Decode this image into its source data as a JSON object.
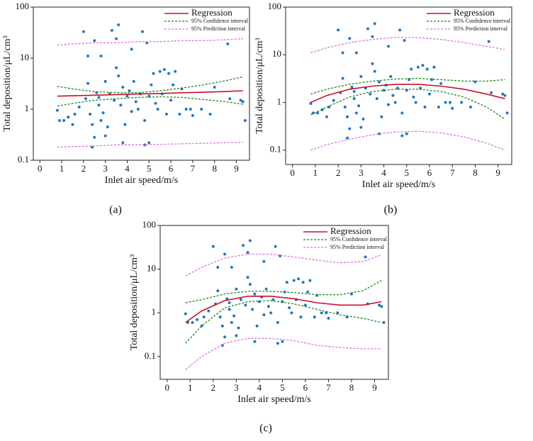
{
  "chart_data": [
    {
      "type": "scatter",
      "label": "(a)",
      "xlabel": "Inlet air speed/m/s",
      "ylabel": "Total deposition/μL/cm³",
      "xlim": [
        -0.3,
        9.6
      ],
      "xticks": [
        0,
        1,
        2,
        3,
        4,
        5,
        6,
        7,
        8,
        9
      ],
      "ylim": [
        0.1,
        100
      ],
      "yticks": [
        0.1,
        1,
        10,
        100
      ],
      "log_y": true,
      "legend": "upper right",
      "points": {
        "color": "#1f77c4",
        "x": [
          0.8,
          0.9,
          1.1,
          1.3,
          1.5,
          1.6,
          1.8,
          2.0,
          2.1,
          2.2,
          2.2,
          2.3,
          2.4,
          2.4,
          2.5,
          2.5,
          2.6,
          2.7,
          2.7,
          2.8,
          2.8,
          2.9,
          3.0,
          3.0,
          3.1,
          3.2,
          3.3,
          3.4,
          3.5,
          3.5,
          3.6,
          3.6,
          3.7,
          3.8,
          3.8,
          3.9,
          4.0,
          4.1,
          4.2,
          4.2,
          4.3,
          4.4,
          4.5,
          4.6,
          4.7,
          4.8,
          4.8,
          4.9,
          5.0,
          5.0,
          5.1,
          5.2,
          5.3,
          5.4,
          5.5,
          5.6,
          5.7,
          5.8,
          5.9,
          6.0,
          6.1,
          6.2,
          6.4,
          6.5,
          6.7,
          6.9,
          7.0,
          7.4,
          7.8,
          8.0,
          8.6,
          8.7,
          9.2,
          9.3,
          9.4
        ],
        "y": [
          0.95,
          0.6,
          0.6,
          0.7,
          0.5,
          0.8,
          1.1,
          33,
          1.6,
          3.2,
          11,
          0.8,
          0.5,
          0.18,
          0.28,
          22,
          2.1,
          1.7,
          1.2,
          11,
          0.6,
          0.85,
          3.5,
          0.3,
          0.45,
          2.0,
          35,
          1.5,
          6.5,
          24,
          45,
          4.5,
          1.2,
          2.7,
          0.22,
          0.5,
          1.8,
          2.3,
          15,
          0.9,
          3.5,
          1.4,
          1.0,
          2.0,
          33,
          0.6,
          0.2,
          20,
          1.8,
          0.22,
          3.0,
          5.0,
          1.3,
          1.0,
          5.5,
          2.0,
          6.0,
          0.8,
          5.0,
          1.5,
          3.0,
          5.5,
          0.8,
          2.5,
          1.0,
          1.0,
          0.75,
          1.0,
          0.8,
          2.7,
          19,
          1.6,
          1.5,
          1.4,
          0.6
        ]
      },
      "line_x": [
        0.8,
        1.5,
        2.5,
        3.5,
        4.5,
        5.5,
        6.5,
        7.5,
        8.5,
        9.3
      ],
      "series": [
        {
          "name": "Regression",
          "color": "#c8102e",
          "dashed": false,
          "values": [
            1.8,
            1.83,
            1.88,
            1.93,
            1.98,
            2.03,
            2.1,
            2.15,
            2.22,
            2.3
          ]
        },
        {
          "name": "95% Confidence interval",
          "color": "#1a8a1a",
          "dashed": true,
          "upper": [
            2.8,
            2.5,
            2.2,
            2.1,
            2.1,
            2.3,
            2.6,
            3.0,
            3.6,
            4.3
          ],
          "lower": [
            1.15,
            1.3,
            1.5,
            1.6,
            1.7,
            1.75,
            1.7,
            1.55,
            1.4,
            1.25
          ]
        },
        {
          "name": "95% Prediction interval",
          "color": "#e070e0",
          "dashed": true,
          "upper": [
            18,
            19,
            20,
            20,
            21,
            21,
            22,
            22,
            23,
            24
          ],
          "lower": [
            0.18,
            0.185,
            0.19,
            0.2,
            0.2,
            0.205,
            0.21,
            0.215,
            0.22,
            0.225
          ]
        }
      ]
    },
    {
      "type": "scatter",
      "label": "(b)",
      "xlabel": "Inlet air speed/m/s",
      "ylabel": "Total deposition/μL/cm³",
      "xlim": [
        -0.3,
        9.6
      ],
      "xticks": [
        0,
        1,
        2,
        3,
        4,
        5,
        6,
        7,
        8,
        9
      ],
      "ylim": [
        0.05,
        100
      ],
      "yticks": [
        0.1,
        1,
        10,
        100
      ],
      "log_y": true,
      "legend": "upper right",
      "points": {
        "color": "#1f77c4",
        "x": [
          0.8,
          0.9,
          1.1,
          1.3,
          1.5,
          1.6,
          1.8,
          2.0,
          2.1,
          2.2,
          2.2,
          2.3,
          2.4,
          2.4,
          2.5,
          2.5,
          2.6,
          2.7,
          2.7,
          2.8,
          2.8,
          2.9,
          3.0,
          3.0,
          3.1,
          3.2,
          3.3,
          3.4,
          3.5,
          3.5,
          3.6,
          3.6,
          3.7,
          3.8,
          3.8,
          3.9,
          4.0,
          4.1,
          4.2,
          4.2,
          4.3,
          4.4,
          4.5,
          4.6,
          4.7,
          4.8,
          4.8,
          4.9,
          5.0,
          5.0,
          5.1,
          5.2,
          5.3,
          5.4,
          5.5,
          5.6,
          5.7,
          5.8,
          5.9,
          6.0,
          6.1,
          6.2,
          6.4,
          6.5,
          6.7,
          6.9,
          7.0,
          7.4,
          7.8,
          8.0,
          8.6,
          8.7,
          9.2,
          9.3,
          9.4
        ],
        "y": [
          0.95,
          0.6,
          0.6,
          0.7,
          0.5,
          0.8,
          1.1,
          33,
          1.6,
          3.2,
          11,
          0.8,
          0.5,
          0.18,
          0.28,
          22,
          2.1,
          1.7,
          1.2,
          11,
          0.6,
          0.85,
          3.5,
          0.3,
          0.45,
          2.0,
          35,
          1.5,
          6.5,
          24,
          45,
          4.5,
          1.2,
          2.7,
          0.22,
          0.5,
          1.8,
          2.3,
          15,
          0.9,
          3.5,
          1.4,
          1.0,
          2.0,
          33,
          0.6,
          0.2,
          20,
          1.8,
          0.22,
          3.0,
          5.0,
          1.3,
          1.0,
          5.5,
          2.0,
          6.0,
          0.8,
          5.0,
          1.5,
          3.0,
          5.5,
          0.8,
          2.5,
          1.0,
          1.0,
          0.75,
          1.0,
          0.8,
          2.7,
          19,
          1.6,
          1.5,
          1.4,
          0.6
        ]
      },
      "line_x": [
        0.8,
        1.5,
        2.5,
        3.5,
        4.5,
        5.5,
        6.5,
        7.5,
        8.5,
        9.3
      ],
      "series": [
        {
          "name": "Regression",
          "color": "#c8102e",
          "dashed": false,
          "values": [
            1.0,
            1.4,
            1.9,
            2.2,
            2.4,
            2.4,
            2.2,
            1.9,
            1.5,
            1.2
          ]
        },
        {
          "name": "95% Confidence interval",
          "color": "#1a8a1a",
          "dashed": true,
          "upper": [
            1.5,
            1.9,
            2.4,
            2.8,
            3.1,
            3.2,
            3.0,
            2.8,
            2.8,
            3.0
          ],
          "lower": [
            0.55,
            0.8,
            1.3,
            1.7,
            1.9,
            1.9,
            1.7,
            1.3,
            0.8,
            0.45
          ]
        },
        {
          "name": "95% Prediction interval",
          "color": "#e070e0",
          "dashed": true,
          "upper": [
            11,
            14,
            18,
            21,
            23,
            23,
            21,
            18,
            15,
            13
          ],
          "lower": [
            0.1,
            0.13,
            0.17,
            0.21,
            0.24,
            0.25,
            0.23,
            0.19,
            0.14,
            0.1
          ]
        }
      ]
    },
    {
      "type": "scatter",
      "label": "(c)",
      "xlabel": "Inlet air speed/m/s",
      "ylabel": "Total deposition/μL/cm³",
      "xlim": [
        -0.3,
        9.6
      ],
      "xticks": [
        0,
        1,
        2,
        3,
        4,
        5,
        6,
        7,
        8,
        9
      ],
      "ylim": [
        0.03,
        100
      ],
      "yticks": [
        0.1,
        1,
        10,
        100
      ],
      "log_y": true,
      "legend": "upper right",
      "points": {
        "color": "#1f77c4",
        "x": [
          0.8,
          0.9,
          1.1,
          1.3,
          1.5,
          1.6,
          1.8,
          2.0,
          2.1,
          2.2,
          2.2,
          2.3,
          2.4,
          2.4,
          2.5,
          2.5,
          2.6,
          2.7,
          2.7,
          2.8,
          2.8,
          2.9,
          3.0,
          3.0,
          3.1,
          3.2,
          3.3,
          3.4,
          3.5,
          3.5,
          3.6,
          3.6,
          3.7,
          3.8,
          3.8,
          3.9,
          4.0,
          4.1,
          4.2,
          4.2,
          4.3,
          4.4,
          4.5,
          4.6,
          4.7,
          4.8,
          4.8,
          4.9,
          5.0,
          5.0,
          5.1,
          5.2,
          5.3,
          5.4,
          5.5,
          5.6,
          5.7,
          5.8,
          5.9,
          6.0,
          6.1,
          6.2,
          6.4,
          6.5,
          6.7,
          6.9,
          7.0,
          7.4,
          7.8,
          8.0,
          8.6,
          8.7,
          9.2,
          9.3,
          9.4
        ],
        "y": [
          0.95,
          0.6,
          0.6,
          0.7,
          0.5,
          0.8,
          1.1,
          33,
          1.6,
          3.2,
          11,
          0.8,
          0.5,
          0.18,
          0.28,
          22,
          2.1,
          1.7,
          1.2,
          11,
          0.6,
          0.85,
          3.5,
          0.3,
          0.45,
          2.0,
          35,
          1.5,
          6.5,
          24,
          45,
          4.5,
          1.2,
          2.7,
          0.22,
          0.5,
          1.8,
          2.3,
          15,
          0.9,
          3.5,
          1.4,
          1.0,
          2.0,
          33,
          0.6,
          0.2,
          20,
          1.8,
          0.22,
          3.0,
          5.0,
          1.3,
          1.0,
          5.5,
          2.0,
          6.0,
          0.8,
          5.0,
          1.5,
          3.0,
          5.5,
          0.8,
          2.5,
          1.0,
          1.0,
          0.75,
          1.0,
          0.8,
          2.7,
          19,
          1.6,
          1.5,
          1.4,
          0.6
        ]
      },
      "line_x": [
        0.8,
        1.5,
        2.5,
        3.5,
        4.5,
        5.5,
        6.5,
        7.5,
        8.5,
        9.3
      ],
      "series": [
        {
          "name": "Regression",
          "color": "#c8102e",
          "dashed": false,
          "values": [
            0.6,
            1.1,
            1.9,
            2.4,
            2.4,
            2.1,
            1.7,
            1.5,
            1.5,
            1.8
          ]
        },
        {
          "name": "95% Confidence interval",
          "color": "#1a8a1a",
          "dashed": true,
          "upper": [
            1.7,
            2.0,
            2.7,
            3.1,
            3.1,
            2.9,
            2.6,
            2.6,
            3.2,
            5.5
          ],
          "lower": [
            0.2,
            0.5,
            1.3,
            1.8,
            1.9,
            1.6,
            1.2,
            0.9,
            0.75,
            0.6
          ]
        },
        {
          "name": "95% Prediction interval",
          "color": "#e070e0",
          "dashed": true,
          "upper": [
            7,
            11,
            18,
            22,
            22,
            19,
            16,
            14,
            15,
            21
          ],
          "lower": [
            0.05,
            0.1,
            0.2,
            0.26,
            0.26,
            0.23,
            0.18,
            0.16,
            0.15,
            0.15
          ]
        }
      ]
    }
  ]
}
